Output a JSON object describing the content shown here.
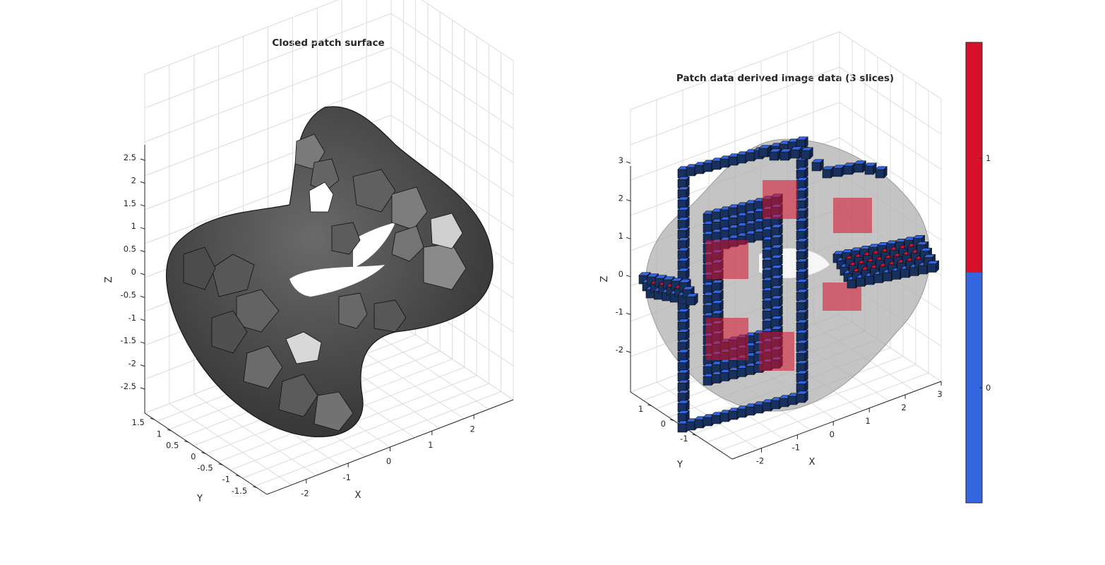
{
  "figure": {
    "background": "#ffffff",
    "grid_color": "#dcdcdc",
    "axis_color": "#262626"
  },
  "chart_data": [
    {
      "type": "surface-3d",
      "title": "Closed patch surface",
      "xlabel": "X",
      "ylabel": "Y",
      "zlabel": "Z",
      "x_ticks": [
        "-2",
        "-1",
        "0",
        "1",
        "2"
      ],
      "y_ticks": [
        "-1.5",
        "-1",
        "-0.5",
        "0",
        "0.5",
        "1",
        "1.5"
      ],
      "z_ticks": [
        "-2.5",
        "-2",
        "-1.5",
        "-1",
        "-0.5",
        "0",
        "0.5",
        "1",
        "1.5",
        "2",
        "2.5"
      ],
      "xlim": [
        -2.6,
        2.6
      ],
      "ylim": [
        -1.8,
        1.8
      ],
      "zlim": [
        -2.8,
        2.8
      ],
      "grid": true,
      "face_color": "#4a4a4a",
      "edge_color": "#111111"
    },
    {
      "type": "voxel-3d",
      "title": "Patch data derived image data (3 slices)",
      "xlabel": "X",
      "ylabel": "Y",
      "zlabel": "Z",
      "x_ticks": [
        "-2",
        "-1",
        "0",
        "1",
        "2",
        "3"
      ],
      "y_ticks": [
        "-1",
        "0",
        "1"
      ],
      "z_ticks": [
        "-2",
        "-1",
        "0",
        "1",
        "2",
        "3"
      ],
      "xlim": [
        -3,
        3
      ],
      "ylim": [
        -1.5,
        1.5
      ],
      "zlim": [
        -3,
        3
      ],
      "grid": true,
      "shell_color": "#b0b0b0",
      "colorbar": {
        "ticks": [
          "0",
          "1"
        ],
        "categories": [
          {
            "value": 0,
            "color": "#3466e0"
          },
          {
            "value": 1,
            "color": "#d7112b"
          }
        ],
        "location": "right"
      }
    }
  ]
}
